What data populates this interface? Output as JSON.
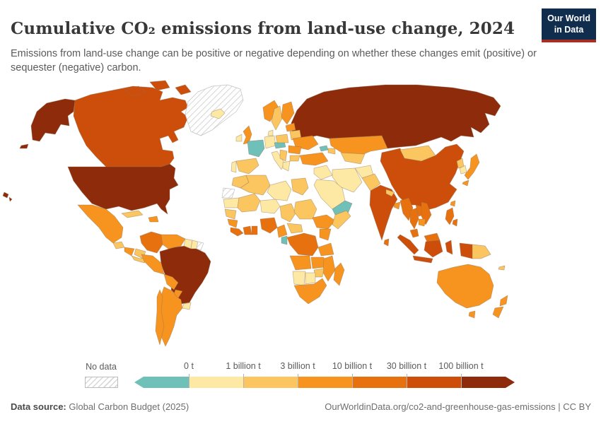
{
  "header": {
    "title": "Cumulative CO₂ emissions from land-use change, 2024",
    "subtitle": "Emissions from land-use change can be positive or negative depending on whether these changes emit (positive) or sequester (negative) carbon.",
    "logo_line1": "Our World",
    "logo_line2": "in Data",
    "logo_colors": {
      "background": "#102d4e",
      "stripe": "#a82e25",
      "text": "#ffffff"
    }
  },
  "legend": {
    "no_data_label": "No data",
    "ticks": [
      "0 t",
      "1 billion t",
      "3 billion t",
      "10 billion t",
      "30 billion t",
      "100 billion t"
    ],
    "bar_colors": [
      "#6ec0b8",
      "#fde8a4",
      "#fbc55f",
      "#f7941f",
      "#e8710f",
      "#cc4e0a",
      "#8e2b0b"
    ]
  },
  "footer": {
    "source_label": "Data source:",
    "source_value": " Global Carbon Budget (2025)",
    "attribution": "OurWorldinData.org/co2-and-greenhouse-gas-emissions | CC BY"
  },
  "chart_data": {
    "type": "heatmap",
    "subtype": "world-choropleth",
    "title": "Cumulative CO₂ emissions from land-use change, 2024",
    "unit": "tonnes of CO₂ from land-use change (cumulative)",
    "legend_position": "bottom",
    "no_data_style": "diagonal-hatch",
    "palette": {
      "negative": "#6ec0b8",
      "lt1": "#fde8a4",
      "1to3": "#fbc55f",
      "3to10": "#f7941f",
      "10to30": "#e8710f",
      "30to100": "#cc4e0a",
      "gt100": "#8e2b0b"
    },
    "bins": [
      {
        "key": "negative",
        "range": "below 0 t (net sequestration)",
        "color": "#6ec0b8"
      },
      {
        "key": "lt1",
        "range": "0 t – 1 billion t",
        "color": "#fde8a4"
      },
      {
        "key": "1to3",
        "range": "1 – 3 billion t",
        "color": "#fbc55f"
      },
      {
        "key": "3to10",
        "range": "3 – 10 billion t",
        "color": "#f7941f"
      },
      {
        "key": "10to30",
        "range": "10 – 30 billion t",
        "color": "#e8710f"
      },
      {
        "key": "30to100",
        "range": "30 – 100 billion t",
        "color": "#cc4e0a"
      },
      {
        "key": "gt100",
        "range": "over 100 billion t",
        "color": "#8e2b0b"
      },
      {
        "key": "no_data",
        "range": "No data",
        "color": "hatch"
      }
    ],
    "regions": [
      {
        "id": "russia",
        "name": "Russia",
        "bin": "gt100"
      },
      {
        "id": "canada",
        "name": "Canada",
        "bin": "30to100"
      },
      {
        "id": "greenland",
        "name": "Greenland",
        "bin": "no_data"
      },
      {
        "id": "united-states",
        "name": "United States",
        "bin": "gt100"
      },
      {
        "id": "united-states-alaska",
        "name": "United States (Alaska)",
        "bin": "gt100"
      },
      {
        "id": "united-states-hawaii",
        "name": "United States (Hawaii)",
        "bin": "gt100"
      },
      {
        "id": "china",
        "name": "China",
        "bin": "30to100"
      },
      {
        "id": "mongolia",
        "name": "Mongolia",
        "bin": "1to3"
      },
      {
        "id": "kazakhstan",
        "name": "Kazakhstan",
        "bin": "3to10"
      },
      {
        "id": "brazil",
        "name": "Brazil",
        "bin": "gt100"
      },
      {
        "id": "australia",
        "name": "Australia",
        "bin": "3to10"
      },
      {
        "id": "india",
        "name": "India",
        "bin": "30to100"
      },
      {
        "id": "iceland",
        "name": "Iceland",
        "bin": "lt1"
      },
      {
        "id": "ireland",
        "name": "Ireland",
        "bin": "lt1"
      },
      {
        "id": "united-kingdom",
        "name": "United Kingdom",
        "bin": "3to10"
      },
      {
        "id": "norway",
        "name": "Norway",
        "bin": "3to10"
      },
      {
        "id": "sweden",
        "name": "Sweden",
        "bin": "1to3"
      },
      {
        "id": "finland",
        "name": "Finland",
        "bin": "3to10"
      },
      {
        "id": "denmark",
        "name": "Denmark",
        "bin": "lt1"
      },
      {
        "id": "germany",
        "name": "Germany",
        "bin": "lt1"
      },
      {
        "id": "france",
        "name": "France",
        "bin": "negative"
      },
      {
        "id": "spain",
        "name": "Spain",
        "bin": "1to3"
      },
      {
        "id": "portugal",
        "name": "Portugal",
        "bin": "lt1"
      },
      {
        "id": "italy",
        "name": "Italy",
        "bin": "lt1"
      },
      {
        "id": "czechia-slovakia",
        "name": "Czechia and Slovakia",
        "bin": "negative"
      },
      {
        "id": "poland",
        "name": "Poland",
        "bin": "1to3"
      },
      {
        "id": "belarus",
        "name": "Belarus",
        "bin": "1to3"
      },
      {
        "id": "baltic-states",
        "name": "Baltic states",
        "bin": "3to10"
      },
      {
        "id": "ukraine",
        "name": "Ukraine",
        "bin": "3to10"
      },
      {
        "id": "romania",
        "name": "Romania",
        "bin": "3to10"
      },
      {
        "id": "western-balkans",
        "name": "Western Balkans",
        "bin": "1to3"
      },
      {
        "id": "greece",
        "name": "Greece",
        "bin": "lt1"
      },
      {
        "id": "bulgaria",
        "name": "Bulgaria",
        "bin": "1to3"
      },
      {
        "id": "turkey",
        "name": "Turkey",
        "bin": "3to10"
      },
      {
        "id": "georgia",
        "name": "Georgia",
        "bin": "negative"
      },
      {
        "id": "azerbaijan",
        "name": "Azerbaijan",
        "bin": "1to3"
      },
      {
        "id": "syria-iraq",
        "name": "Syria and Iraq",
        "bin": "lt1"
      },
      {
        "id": "iran",
        "name": "Iran",
        "bin": "lt1"
      },
      {
        "id": "saudi-arabia",
        "name": "Saudi Arabia",
        "bin": "lt1"
      },
      {
        "id": "yemen-oman",
        "name": "Yemen and Oman",
        "bin": "negative"
      },
      {
        "id": "uzbekistan-turkmenistan",
        "name": "Uzbekistan and Turkmenistan",
        "bin": "1to3"
      },
      {
        "id": "afghanistan",
        "name": "Afghanistan",
        "bin": "lt1"
      },
      {
        "id": "pakistan",
        "name": "Pakistan",
        "bin": "1to3"
      },
      {
        "id": "nepal",
        "name": "Nepal",
        "bin": "1to3"
      },
      {
        "id": "bangladesh",
        "name": "Bangladesh",
        "bin": "3to10"
      },
      {
        "id": "sri-lanka",
        "name": "Sri Lanka",
        "bin": "10to30"
      },
      {
        "id": "myanmar",
        "name": "Myanmar",
        "bin": "10to30"
      },
      {
        "id": "thailand",
        "name": "Thailand",
        "bin": "10to30"
      },
      {
        "id": "laos",
        "name": "Laos",
        "bin": "10to30"
      },
      {
        "id": "vietnam",
        "name": "Vietnam",
        "bin": "10to30"
      },
      {
        "id": "cambodia",
        "name": "Cambodia",
        "bin": "3to10"
      },
      {
        "id": "peninsular-malaysia",
        "name": "Malaysia (peninsula)",
        "bin": "10to30"
      },
      {
        "id": "sumatra",
        "name": "Indonesia (Sumatra)",
        "bin": "30to100"
      },
      {
        "id": "java",
        "name": "Indonesia (Java)",
        "bin": "30to100"
      },
      {
        "id": "borneo-malaysia",
        "name": "Malaysia (Borneo)",
        "bin": "10to30"
      },
      {
        "id": "borneo-indonesia",
        "name": "Indonesia (Kalimantan)",
        "bin": "30to100"
      },
      {
        "id": "sulawesi",
        "name": "Indonesia (Sulawesi)",
        "bin": "30to100"
      },
      {
        "id": "west-papua",
        "name": "Indonesia (Papua)",
        "bin": "30to100"
      },
      {
        "id": "papua-new-guinea",
        "name": "Papua New Guinea",
        "bin": "1to3"
      },
      {
        "id": "philippines",
        "name": "Philippines",
        "bin": "10to30"
      },
      {
        "id": "taiwan",
        "name": "Taiwan",
        "bin": "3to10"
      },
      {
        "id": "north-korea",
        "name": "North Korea",
        "bin": "1to3"
      },
      {
        "id": "south-korea",
        "name": "South Korea",
        "bin": "lt1"
      },
      {
        "id": "japan",
        "name": "Japan",
        "bin": "3to10"
      },
      {
        "id": "mexico",
        "name": "Mexico",
        "bin": "3to10"
      },
      {
        "id": "guatemala",
        "name": "Guatemala",
        "bin": "1to3"
      },
      {
        "id": "honduras-nicaragua",
        "name": "Honduras and Nicaragua",
        "bin": "3to10"
      },
      {
        "id": "costa-rica-panama",
        "name": "Costa Rica and Panama",
        "bin": "1to3"
      },
      {
        "id": "cuba",
        "name": "Cuba",
        "bin": "1to3"
      },
      {
        "id": "hispaniola",
        "name": "Hispaniola",
        "bin": "3to10"
      },
      {
        "id": "colombia",
        "name": "Colombia",
        "bin": "10to30"
      },
      {
        "id": "venezuela",
        "name": "Venezuela",
        "bin": "3to10"
      },
      {
        "id": "guyana",
        "name": "Guyana",
        "bin": "lt1"
      },
      {
        "id": "suriname",
        "name": "Suriname",
        "bin": "lt1"
      },
      {
        "id": "french-guiana",
        "name": "French Guiana",
        "bin": "no_data"
      },
      {
        "id": "ecuador",
        "name": "Ecuador",
        "bin": "1to3"
      },
      {
        "id": "peru",
        "name": "Peru",
        "bin": "3to10"
      },
      {
        "id": "bolivia",
        "name": "Bolivia",
        "bin": "3to10"
      },
      {
        "id": "paraguay",
        "name": "Paraguay",
        "bin": "3to10"
      },
      {
        "id": "uruguay",
        "name": "Uruguay",
        "bin": "lt1"
      },
      {
        "id": "argentina",
        "name": "Argentina",
        "bin": "3to10"
      },
      {
        "id": "chile",
        "name": "Chile",
        "bin": "3to10"
      },
      {
        "id": "morocco",
        "name": "Morocco",
        "bin": "1to3"
      },
      {
        "id": "western-sahara",
        "name": "Western Sahara",
        "bin": "no_data"
      },
      {
        "id": "mauritania",
        "name": "Mauritania",
        "bin": "lt1"
      },
      {
        "id": "algeria",
        "name": "Algeria",
        "bin": "1to3"
      },
      {
        "id": "libya",
        "name": "Libya",
        "bin": "lt1"
      },
      {
        "id": "egypt",
        "name": "Egypt",
        "bin": "1to3"
      },
      {
        "id": "mali",
        "name": "Mali",
        "bin": "1to3"
      },
      {
        "id": "niger",
        "name": "Niger",
        "bin": "lt1"
      },
      {
        "id": "chad",
        "name": "Chad",
        "bin": "1to3"
      },
      {
        "id": "sudan",
        "name": "Sudan",
        "bin": "1to3"
      },
      {
        "id": "senegal",
        "name": "Senegal",
        "bin": "1to3"
      },
      {
        "id": "guinea",
        "name": "Guinea",
        "bin": "3to10"
      },
      {
        "id": "sierra-leone-liberia",
        "name": "Sierra Leone and Liberia",
        "bin": "10to30"
      },
      {
        "id": "ivory-coast",
        "name": "Côte d'Ivoire",
        "bin": "10to30"
      },
      {
        "id": "ghana",
        "name": "Ghana",
        "bin": "10to30"
      },
      {
        "id": "nigeria",
        "name": "Nigeria",
        "bin": "10to30"
      },
      {
        "id": "cameroon",
        "name": "Cameroon",
        "bin": "3to10"
      },
      {
        "id": "central-african-republic",
        "name": "Central African Republic",
        "bin": "1to3"
      },
      {
        "id": "ethiopia",
        "name": "Ethiopia",
        "bin": "3to10"
      },
      {
        "id": "somalia",
        "name": "Somalia",
        "bin": "1to3"
      },
      {
        "id": "kenya",
        "name": "Kenya",
        "bin": "3to10"
      },
      {
        "id": "dr-congo",
        "name": "Democratic Republic of Congo",
        "bin": "10to30"
      },
      {
        "id": "gabon",
        "name": "Gabon",
        "bin": "negative"
      },
      {
        "id": "tanzania",
        "name": "Tanzania",
        "bin": "3to10"
      },
      {
        "id": "angola",
        "name": "Angola",
        "bin": "3to10"
      },
      {
        "id": "zambia",
        "name": "Zambia",
        "bin": "3to10"
      },
      {
        "id": "mozambique",
        "name": "Mozambique",
        "bin": "3to10"
      },
      {
        "id": "zimbabwe",
        "name": "Zimbabwe",
        "bin": "1to3"
      },
      {
        "id": "namibia",
        "name": "Namibia",
        "bin": "lt1"
      },
      {
        "id": "botswana",
        "name": "Botswana",
        "bin": "lt1"
      },
      {
        "id": "south-africa",
        "name": "South Africa",
        "bin": "3to10"
      },
      {
        "id": "madagascar",
        "name": "Madagascar",
        "bin": "3to10"
      },
      {
        "id": "tasmania",
        "name": "Australia (Tasmania)",
        "bin": "3to10"
      },
      {
        "id": "new-zealand",
        "name": "New Zealand",
        "bin": "3to10"
      },
      {
        "id": "new-caledonia",
        "name": "New Caledonia",
        "bin": "1to3"
      }
    ]
  }
}
